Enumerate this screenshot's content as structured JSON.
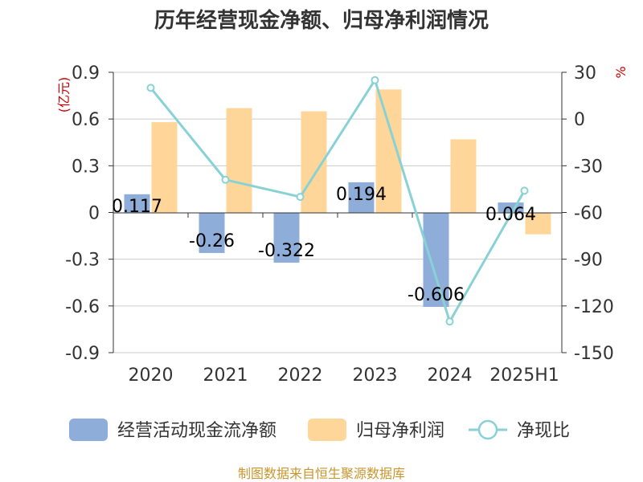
{
  "chart_data": {
    "type": "bar",
    "title": "历年经营现金净额、归母净利润情况",
    "categories": [
      "2020",
      "2021",
      "2022",
      "2023",
      "2024",
      "2025H1"
    ],
    "left_axis": {
      "unit": "(亿元)",
      "ylim": [
        -0.9,
        0.9
      ],
      "ticks": [
        "0.9",
        "0.6",
        "0.3",
        "0",
        "-0.3",
        "-0.6",
        "-0.9"
      ],
      "tick_values": [
        0.9,
        0.6,
        0.3,
        0,
        -0.3,
        -0.6,
        -0.9
      ]
    },
    "right_axis": {
      "unit": "%",
      "ylim": [
        -150,
        30
      ],
      "ticks": [
        "30",
        "0",
        "-30",
        "-60",
        "-90",
        "-120",
        "-150"
      ],
      "tick_values": [
        30,
        0,
        -30,
        -60,
        -90,
        -120,
        -150
      ]
    },
    "grid": true,
    "legend_position": "bottom",
    "series": [
      {
        "name": "经营活动现金流净额",
        "kind": "bar",
        "axis": "left",
        "color": "#8eadd9",
        "values": [
          0.117,
          -0.26,
          -0.322,
          0.194,
          -0.606,
          0.064
        ],
        "labels": [
          "0.117",
          "-0.26",
          "-0.322",
          "0.194",
          "-0.606",
          "0.064"
        ]
      },
      {
        "name": "归母净利润",
        "kind": "bar",
        "axis": "left",
        "color": "#ffd699",
        "values": [
          0.58,
          0.67,
          0.65,
          0.79,
          0.47,
          -0.14
        ]
      },
      {
        "name": "净现比",
        "kind": "line",
        "axis": "right",
        "color": "#88d2d6",
        "values": [
          20,
          -39,
          -50,
          25,
          -130,
          -46
        ]
      }
    ]
  },
  "source": "制图数据来自恒生聚源数据库"
}
